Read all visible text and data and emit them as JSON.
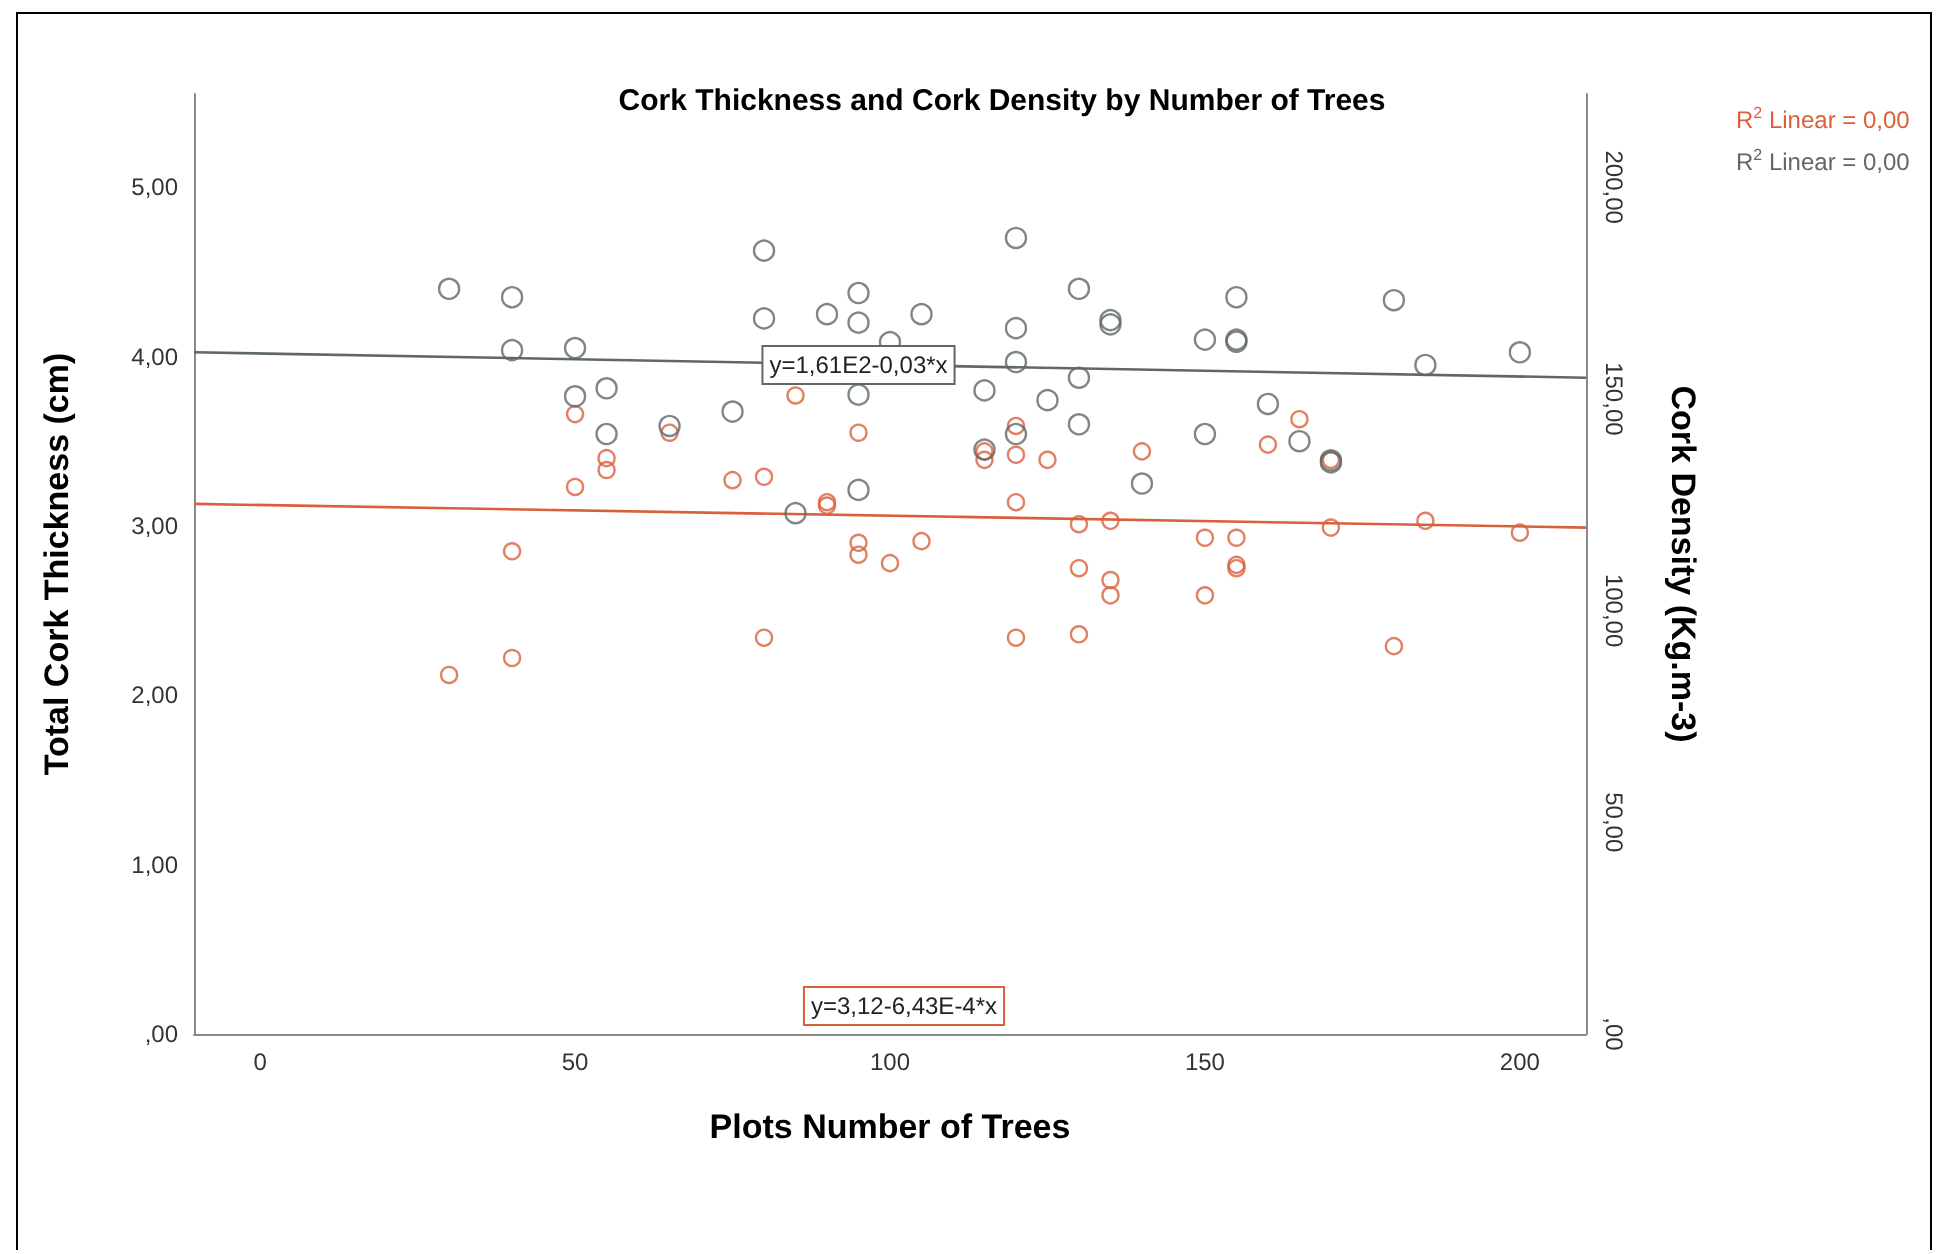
{
  "chart_data": {
    "type": "scatter",
    "title": "Cork Thickness and Cork Density by Number of Trees",
    "xlabel": "Plots Number of Trees",
    "ylabel": "Total Cork Thickness (cm)",
    "y2label": "Cork Density (Kg.m-3)",
    "xlim": [
      -10.5,
      210.5
    ],
    "xticks": [
      0,
      50,
      100,
      150,
      200
    ],
    "ylim": [
      0,
      5.55
    ],
    "yticks": [
      {
        "value": 0,
        "label": ",00"
      },
      {
        "value": 1,
        "label": "1,00"
      },
      {
        "value": 2,
        "label": "2,00"
      },
      {
        "value": 3,
        "label": "3,00"
      },
      {
        "value": 4,
        "label": "4,00"
      },
      {
        "value": 5,
        "label": "5,00"
      }
    ],
    "y2lim": [
      0,
      222
    ],
    "y2ticks": [
      {
        "value": 0,
        "label": ",00"
      },
      {
        "value": 50,
        "label": "50,00"
      },
      {
        "value": 100,
        "label": "100,00"
      },
      {
        "value": 150,
        "label": "150,00"
      },
      {
        "value": 200,
        "label": "200,00"
      }
    ],
    "marker": "circle",
    "grid": false,
    "legend": "top right",
    "series": [
      {
        "type": "scatter",
        "color": "#d9603b",
        "x": [
          30,
          40,
          40,
          50,
          50,
          55,
          55,
          65,
          75,
          80,
          80,
          85,
          90,
          90,
          95,
          95,
          95,
          100,
          105,
          115,
          115,
          120,
          120,
          120,
          120,
          125,
          130,
          130,
          130,
          135,
          135,
          135,
          140,
          150,
          150,
          155,
          155,
          155,
          160,
          165,
          170,
          170,
          180,
          185,
          200
        ],
        "values": [
          2.12,
          2.22,
          2.85,
          3.66,
          3.23,
          3.4,
          3.33,
          3.55,
          3.27,
          3.29,
          2.34,
          3.77,
          3.14,
          3.12,
          3.55,
          2.9,
          2.83,
          2.78,
          2.91,
          3.44,
          3.39,
          3.59,
          3.42,
          3.14,
          2.34,
          3.39,
          3.01,
          2.75,
          2.36,
          3.03,
          2.68,
          2.59,
          3.44,
          2.93,
          2.59,
          2.93,
          2.77,
          2.75,
          3.48,
          3.63,
          3.39,
          2.99,
          2.29,
          3.03,
          2.96
        ]
      },
      {
        "type": "scatter",
        "color": "#5f6868",
        "axis": "y2",
        "x": [
          30,
          40,
          40,
          50,
          50,
          55,
          55,
          65,
          75,
          80,
          80,
          85,
          90,
          95,
          95,
          95,
          95,
          100,
          105,
          115,
          115,
          120,
          120,
          120,
          120,
          125,
          130,
          130,
          130,
          135,
          135,
          140,
          150,
          150,
          155,
          155,
          155,
          160,
          165,
          170,
          170,
          180,
          185,
          200
        ],
        "values": [
          176,
          174,
          161.5,
          162,
          150.6,
          152.5,
          141.7,
          143.6,
          147,
          185,
          169,
          123,
          170,
          175,
          168,
          151,
          128.5,
          163.4,
          170,
          152,
          138,
          188,
          166.7,
          158.7,
          141.7,
          149.7,
          176,
          155,
          144,
          168.6,
          167.6,
          130,
          164,
          141.7,
          174,
          164,
          163.5,
          148.8,
          140,
          135.5,
          135,
          173.3,
          158,
          161
        ]
      },
      {
        "type": "line",
        "name": "R$^{2}$ Linear = 0,00",
        "color": "#d9603b",
        "marker": "none",
        "line_style": "solid",
        "x": [
          -10.5,
          210.5
        ],
        "values": [
          3.13,
          2.99
        ]
      },
      {
        "type": "line",
        "name": "R$^{2}$ Linear = 0,00",
        "color": "#5f6868",
        "axis": "y2",
        "marker": "none",
        "line_style": "solid",
        "x": [
          -10.5,
          210.5
        ],
        "values": [
          161,
          155
        ]
      }
    ],
    "annotations": [
      "y=3,12-6,43E-4*x",
      {
        "text": "y=1,61E2-0,03*x",
        "x": 95,
        "y": 3.95
      }
    ]
  }
}
